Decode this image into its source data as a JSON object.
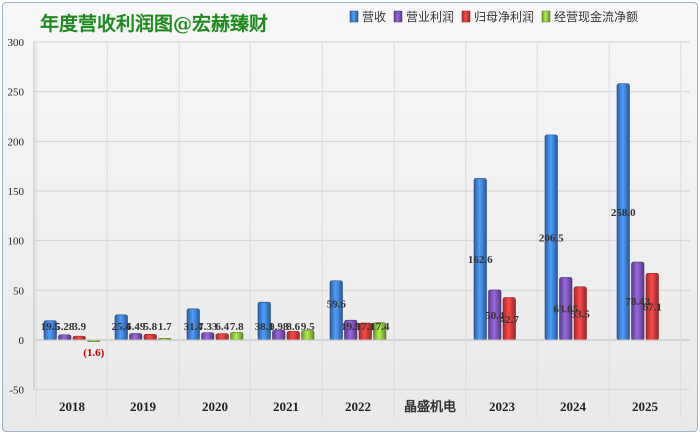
{
  "chart_data": {
    "type": "bar",
    "title": "年度营收利润图@宏赫臻财",
    "categories": [
      "2018",
      "2019",
      "2020",
      "2021",
      "2022",
      "2023",
      "2024",
      "2025"
    ],
    "separator_label": "晶盛机电",
    "ylim": [
      -50,
      300
    ],
    "yticks": [
      "300",
      "250",
      "200",
      "150",
      "100",
      "50",
      "0",
      "-50"
    ],
    "ytick_values": [
      300,
      250,
      200,
      150,
      100,
      50,
      0,
      -50
    ],
    "series": [
      {
        "name": "营收",
        "color": "#3c7fd6",
        "values": [
          19.5,
          25.4,
          31.4,
          38.1,
          59.6,
          162.6,
          206.5,
          258.0
        ],
        "labels": [
          "19.5",
          "25.4",
          "31.4",
          "38.1",
          "59.6",
          "162.6",
          "206.5",
          "258.0"
        ]
      },
      {
        "name": "营业利润",
        "color": "#7b52b5",
        "values": [
          5.28,
          6.49,
          7.33,
          9.98,
          19.9,
          50.4,
          63.05,
          78.43
        ],
        "labels": [
          "5.28",
          "6.49",
          "7.33",
          "9.98",
          "19.9",
          "50.4",
          "63.05",
          "78.43"
        ]
      },
      {
        "name": "归母净利润",
        "color": "#d93a3a",
        "values": [
          3.9,
          5.8,
          6.4,
          8.6,
          17.1,
          42.7,
          53.5,
          67.1
        ],
        "labels": [
          "3.9",
          "5.8",
          "6.4",
          "8.6",
          "17.1",
          "42.7",
          "53.5",
          "67.1"
        ]
      },
      {
        "name": "经营现金流净额",
        "color": "#8ac23a",
        "values": [
          -1.6,
          1.7,
          7.8,
          9.5,
          17.4,
          null,
          null,
          null
        ],
        "labels": [
          "(1.6)",
          "1.7",
          "7.8",
          "9.5",
          "17.4",
          "",
          "",
          ""
        ]
      }
    ]
  }
}
